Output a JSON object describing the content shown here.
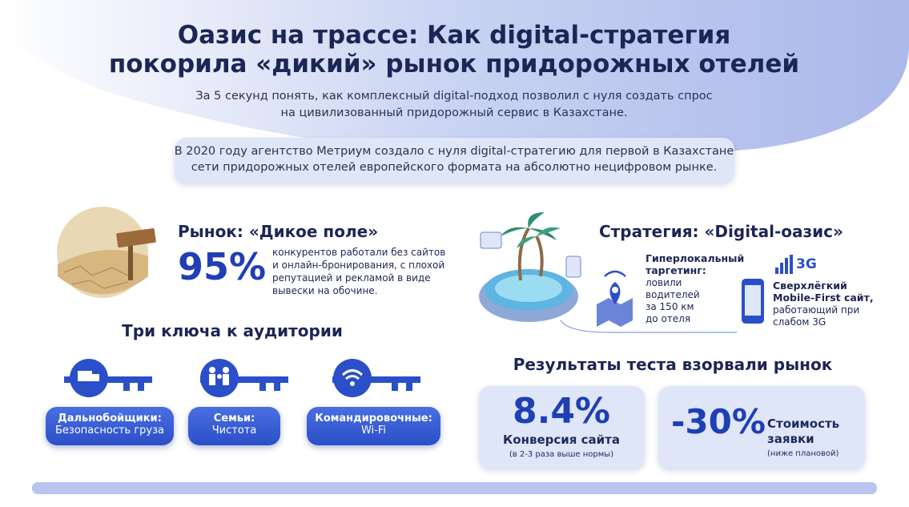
{
  "header": {
    "title_lines": [
      "Оазис на трассе: Как digital-стратегия",
      "покорила «дикий» рынок придорожных отелей"
    ],
    "subtitle_lines": [
      "За 5 секунд понять, как комплексный digital-подход позволил с нуля создать спрос",
      "на цивилизованный придорожный сервис в Казахстане."
    ]
  },
  "intro": {
    "lines": [
      "В 2020 году агентство Метриум создало с нуля digital-стратегию для первой в Казахстане",
      "сети придорожных отелей европейского формата на абсолютно нецифровом рынке."
    ]
  },
  "market": {
    "title": "Рынок: «Дикое поле»",
    "stat": "95%",
    "description_lines": [
      "конкурентов работали без сайтов",
      "и онлайн-бронирования, с плохой",
      "репутацией и рекламой в виде",
      "вывески на обочине."
    ]
  },
  "keys": {
    "title": "Три ключа к аудитории",
    "items": [
      {
        "label": "Дальнобойщики:",
        "detail": "Безопасность груза"
      },
      {
        "label": "Семьи:",
        "detail": "Чистота"
      },
      {
        "label": "Командировочные:",
        "detail": "Wi-Fi"
      }
    ]
  },
  "strategy": {
    "title": "Стратегия: «Digital-оазис»",
    "targeting": {
      "title_lines": [
        "Гиперлокальный",
        "таргетинг:"
      ],
      "detail_lines": [
        "ловили",
        "водителей",
        "за 150 км",
        "до отеля"
      ]
    },
    "mobile": {
      "badge": "3G",
      "title_lines": [
        "Сверхлёгкий",
        "Mobile-First сайт,"
      ],
      "detail_lines": [
        "работающий при",
        "слабом 3G"
      ]
    }
  },
  "results": {
    "title": "Результаты теста взорвали рынок",
    "cards": [
      {
        "value": "8.4%",
        "label_lines": [
          "Конверсия сайта"
        ],
        "note": "(в 2-3 раза выше нормы)"
      },
      {
        "value": "-30%",
        "label_lines": [
          "Стоимость",
          "заявки"
        ],
        "note": "(ниже плановой)"
      }
    ]
  }
}
